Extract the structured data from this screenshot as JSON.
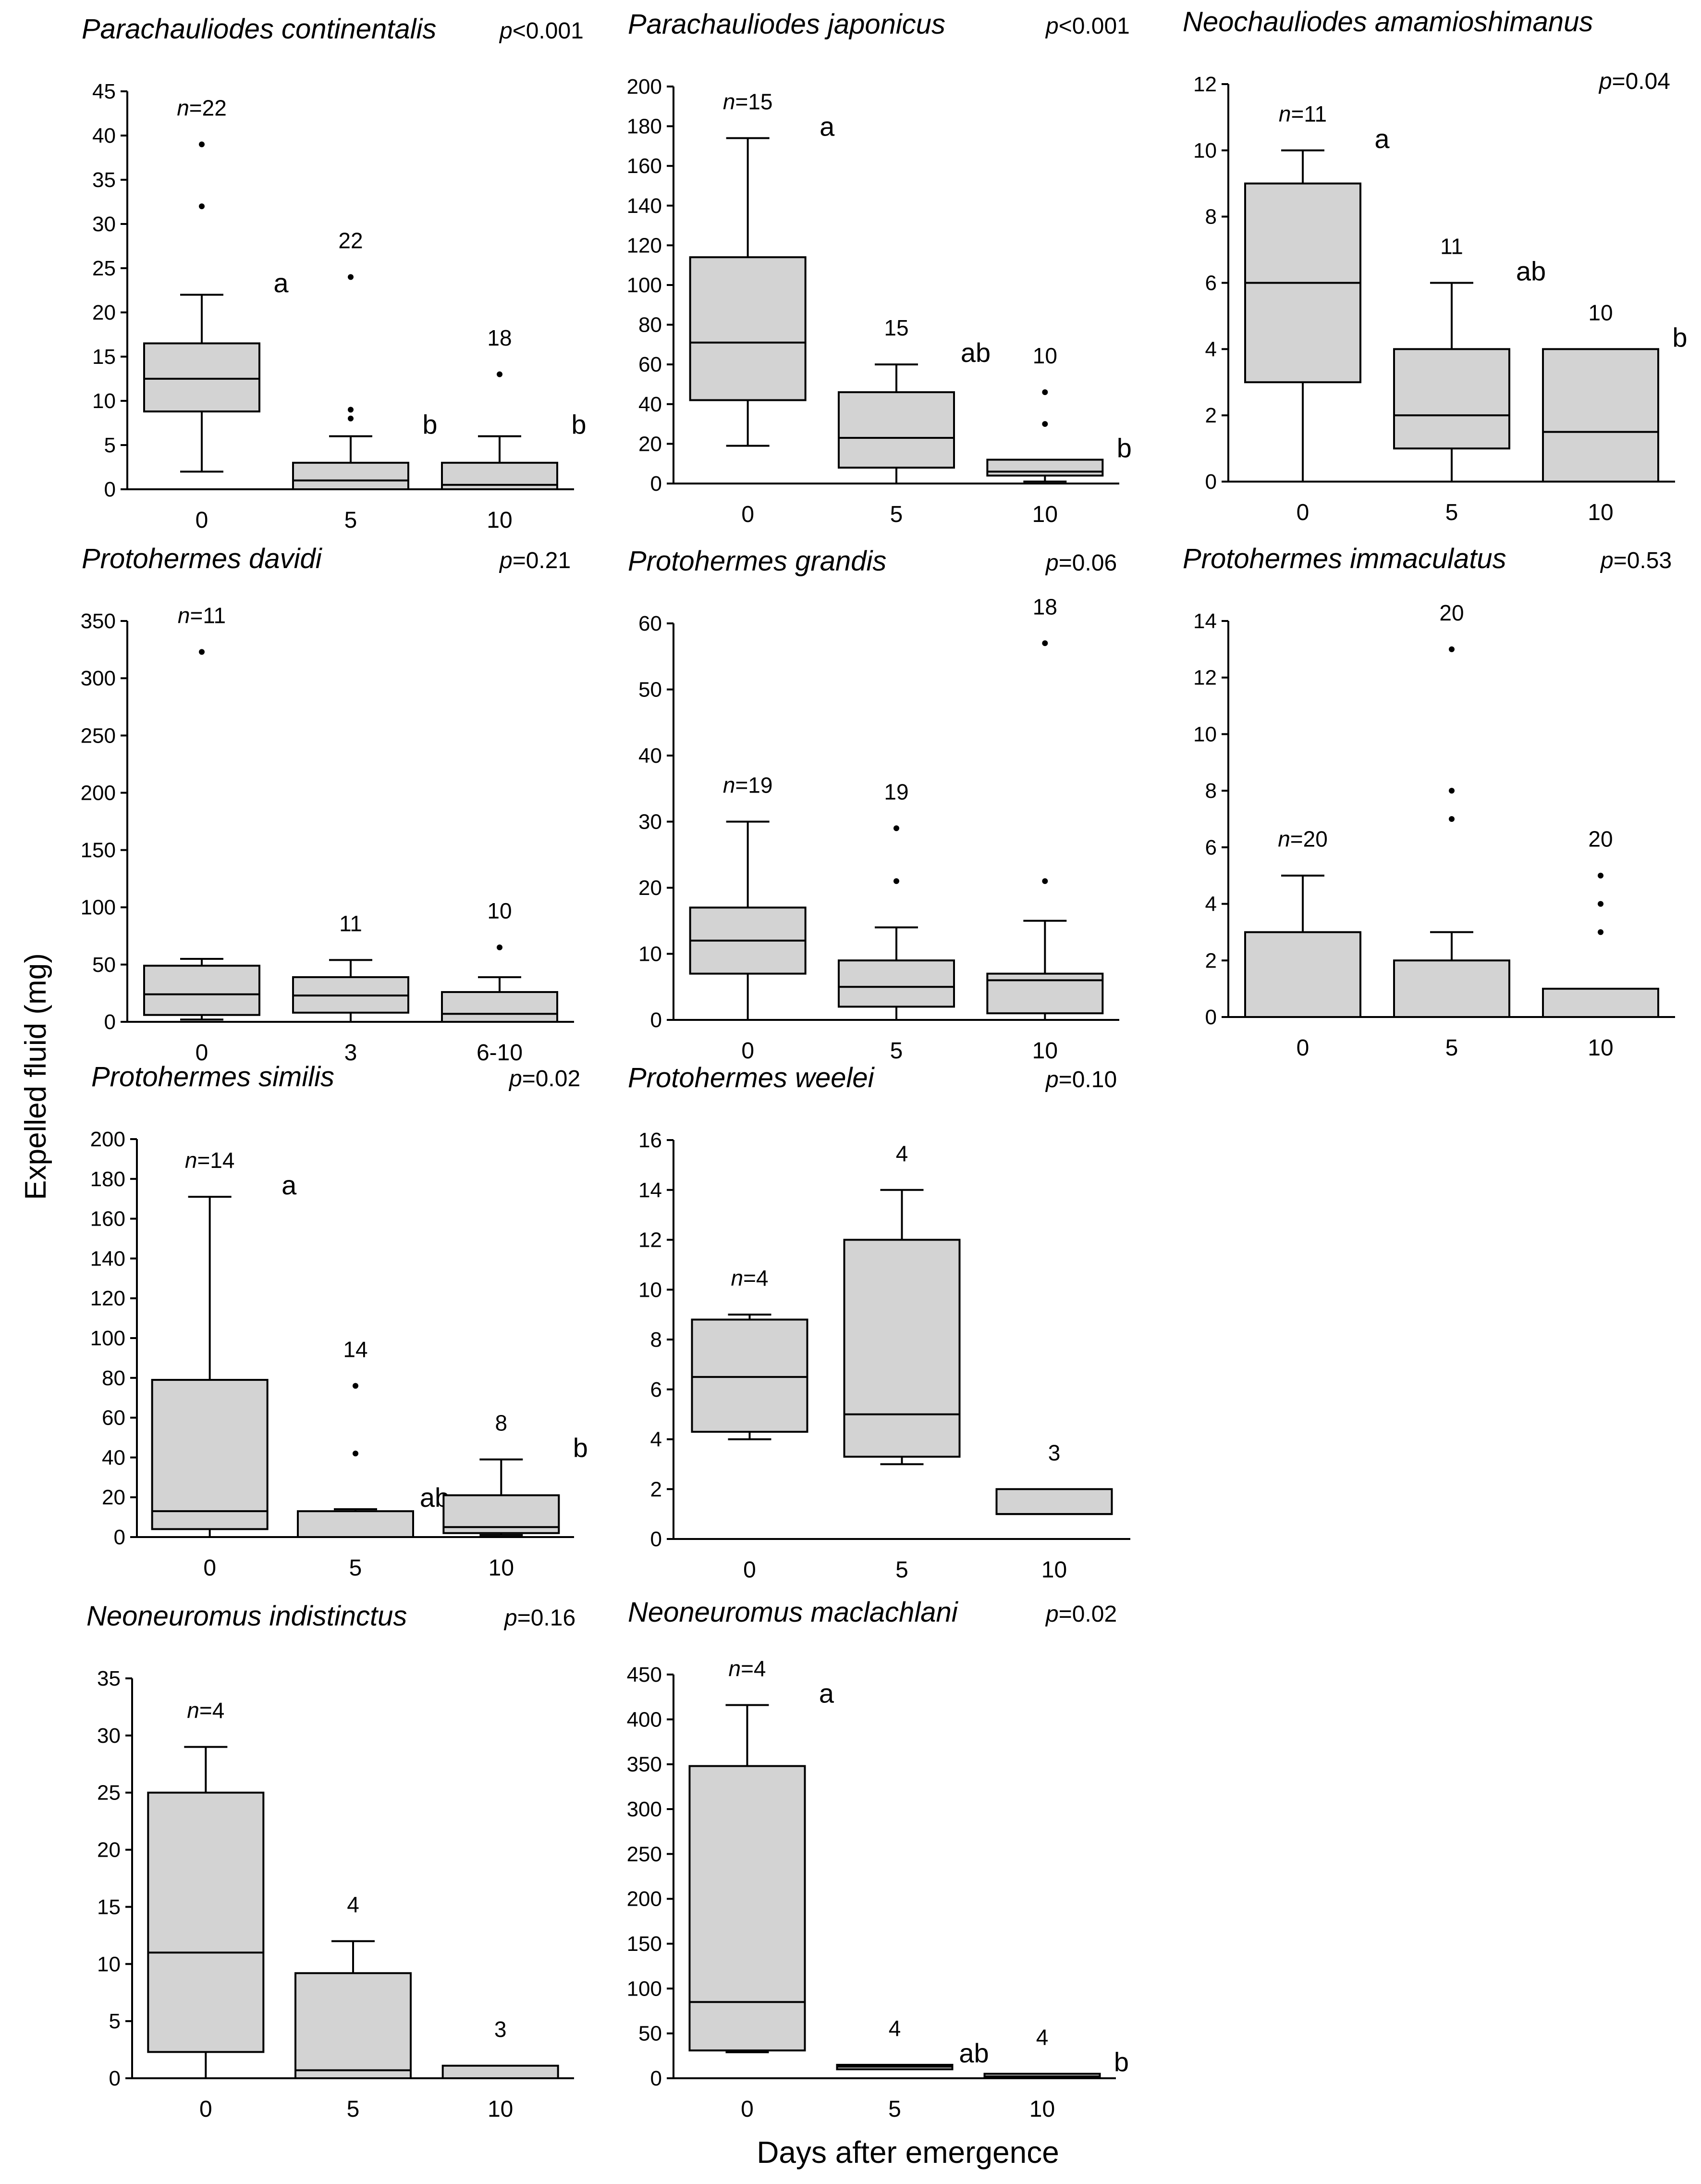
{
  "figure": {
    "ylabel": "Expelled fluid (mg)",
    "xlabel": "Days after emergence"
  },
  "chart_data": [
    {
      "type": "boxplot",
      "title": "Parachauliodes continentalis",
      "p": "p<0.001",
      "ylim": [
        0,
        45
      ],
      "yticks": [
        0,
        5,
        10,
        15,
        20,
        25,
        30,
        35,
        40,
        45
      ],
      "categories": [
        "0",
        "5",
        "10"
      ],
      "boxes": [
        {
          "category": "0",
          "min": 2,
          "q1": 8.8,
          "median": 12.5,
          "q3": 16.5,
          "max": 22,
          "outliers": [
            32,
            39
          ],
          "n": "n=22",
          "letter": "a"
        },
        {
          "category": "5",
          "min": 0,
          "q1": 0,
          "median": 1,
          "q3": 3,
          "max": 6,
          "outliers": [
            8,
            9,
            24
          ],
          "n": "22",
          "letter": "b"
        },
        {
          "category": "10",
          "min": 0,
          "q1": 0,
          "median": 0.5,
          "q3": 3,
          "max": 6,
          "outliers": [
            13
          ],
          "n": "18",
          "letter": "b"
        }
      ]
    },
    {
      "type": "boxplot",
      "title": "Parachauliodes japonicus",
      "p": "p<0.001",
      "ylim": [
        0,
        200
      ],
      "yticks": [
        0,
        20,
        40,
        60,
        80,
        100,
        120,
        140,
        160,
        180,
        200
      ],
      "categories": [
        "0",
        "5",
        "10"
      ],
      "boxes": [
        {
          "category": "0",
          "min": 19,
          "q1": 42,
          "median": 71,
          "q3": 114,
          "max": 174,
          "outliers": [],
          "n": "n=15",
          "letter": "a"
        },
        {
          "category": "5",
          "min": 0,
          "q1": 8,
          "median": 23,
          "q3": 46,
          "max": 60,
          "outliers": [],
          "n": "15",
          "letter": "ab"
        },
        {
          "category": "10",
          "min": 1,
          "q1": 4,
          "median": 6,
          "q3": 12,
          "max": 12,
          "outliers": [
            30,
            46
          ],
          "n": "10",
          "letter": "b"
        }
      ]
    },
    {
      "type": "boxplot",
      "title": "Neochauliodes amamioshimanus",
      "p": "p=0.04",
      "ylim": [
        0,
        12
      ],
      "yticks": [
        0,
        2,
        4,
        6,
        8,
        10,
        12
      ],
      "categories": [
        "0",
        "5",
        "10"
      ],
      "boxes": [
        {
          "category": "0",
          "min": 0,
          "q1": 3,
          "median": 6,
          "q3": 9,
          "max": 10,
          "outliers": [],
          "n": "n=11",
          "letter": "a"
        },
        {
          "category": "5",
          "min": 0,
          "q1": 1,
          "median": 2,
          "q3": 4,
          "max": 6,
          "outliers": [],
          "n": "11",
          "letter": "ab"
        },
        {
          "category": "10",
          "min": 0,
          "q1": 0,
          "median": 1.5,
          "q3": 4,
          "max": 4,
          "outliers": [],
          "n": "10",
          "letter": "b"
        }
      ]
    },
    {
      "type": "boxplot",
      "title": "Protohermes davidi",
      "p": "p=0.21",
      "ylim": [
        0,
        350
      ],
      "yticks": [
        0,
        50,
        100,
        150,
        200,
        250,
        300,
        350
      ],
      "categories": [
        "0",
        "3",
        "6-10"
      ],
      "boxes": [
        {
          "category": "0",
          "min": 2,
          "q1": 6,
          "median": 24,
          "q3": 49,
          "max": 55,
          "outliers": [
            323
          ],
          "n": "n=11",
          "letter": ""
        },
        {
          "category": "3",
          "min": 0,
          "q1": 8,
          "median": 23,
          "q3": 39,
          "max": 54,
          "outliers": [],
          "n": "11",
          "letter": ""
        },
        {
          "category": "6-10",
          "min": 0,
          "q1": 0,
          "median": 7,
          "q3": 26,
          "max": 39,
          "outliers": [
            65
          ],
          "n": "10",
          "letter": ""
        }
      ]
    },
    {
      "type": "boxplot",
      "title": "Protohermes grandis",
      "p": "p=0.06",
      "ylim": [
        0,
        60
      ],
      "yticks": [
        0,
        10,
        20,
        30,
        40,
        50,
        60
      ],
      "categories": [
        "0",
        "5",
        "10"
      ],
      "boxes": [
        {
          "category": "0",
          "min": 0,
          "q1": 7,
          "median": 12,
          "q3": 17,
          "max": 30,
          "outliers": [],
          "n": "n=19",
          "letter": ""
        },
        {
          "category": "5",
          "min": 0,
          "q1": 2,
          "median": 5,
          "q3": 9,
          "max": 14,
          "outliers": [
            21,
            29
          ],
          "n": "19",
          "letter": ""
        },
        {
          "category": "10",
          "min": 0,
          "q1": 1,
          "median": 6,
          "q3": 7,
          "max": 15,
          "outliers": [
            21,
            57
          ],
          "n": "18",
          "letter": ""
        }
      ]
    },
    {
      "type": "boxplot",
      "title": "Protohermes immaculatus",
      "p": "p=0.53",
      "ylim": [
        0,
        14
      ],
      "yticks": [
        0,
        2,
        4,
        6,
        8,
        10,
        12,
        14
      ],
      "categories": [
        "0",
        "5",
        "10"
      ],
      "boxes": [
        {
          "category": "0",
          "min": 0,
          "q1": 0,
          "median": 0,
          "q3": 3,
          "max": 5,
          "outliers": [],
          "n": "n=20",
          "letter": ""
        },
        {
          "category": "5",
          "min": 0,
          "q1": 0,
          "median": 0,
          "q3": 2,
          "max": 3,
          "outliers": [
            7,
            8,
            13
          ],
          "n": "20",
          "letter": ""
        },
        {
          "category": "10",
          "min": 0,
          "q1": 0,
          "median": 0,
          "q3": 1,
          "max": 1,
          "outliers": [
            3,
            4,
            5
          ],
          "n": "20",
          "letter": ""
        }
      ]
    },
    {
      "type": "boxplot",
      "title": "Protohermes similis",
      "p": "p=0.02",
      "ylim": [
        0,
        200
      ],
      "yticks": [
        0,
        20,
        40,
        60,
        80,
        100,
        120,
        140,
        160,
        180,
        200
      ],
      "categories": [
        "0",
        "5",
        "10"
      ],
      "boxes": [
        {
          "category": "0",
          "min": 0,
          "q1": 4,
          "median": 13,
          "q3": 79,
          "max": 171,
          "outliers": [],
          "n": "n=14",
          "letter": "a"
        },
        {
          "category": "5",
          "min": 0,
          "q1": 0,
          "median": 0,
          "q3": 13,
          "max": 14,
          "outliers": [
            42,
            76
          ],
          "n": "14",
          "letter": "ab"
        },
        {
          "category": "10",
          "min": 1,
          "q1": 2,
          "median": 5,
          "q3": 21,
          "max": 39,
          "outliers": [],
          "n": "8",
          "letter": "b"
        }
      ]
    },
    {
      "type": "boxplot",
      "title": "Protohermes weelei",
      "p": "p=0.10",
      "ylim": [
        0,
        16
      ],
      "yticks": [
        0,
        2,
        4,
        6,
        8,
        10,
        12,
        14,
        16
      ],
      "categories": [
        "0",
        "5",
        "10"
      ],
      "boxes": [
        {
          "category": "0",
          "min": 4,
          "q1": 4.3,
          "median": 6.5,
          "q3": 8.8,
          "max": 9,
          "outliers": [],
          "n": "n=4",
          "letter": ""
        },
        {
          "category": "5",
          "min": 3,
          "q1": 3.3,
          "median": 5,
          "q3": 12,
          "max": 14,
          "outliers": [],
          "n": "4",
          "letter": ""
        },
        {
          "category": "10",
          "min": 1,
          "q1": 1,
          "median": 1,
          "q3": 2,
          "max": 2,
          "outliers": [],
          "n": "3",
          "letter": ""
        }
      ]
    },
    {
      "type": "boxplot",
      "title": "Neoneuromus indistinctus",
      "p": "p=0.16",
      "ylim": [
        0,
        35
      ],
      "yticks": [
        0,
        5,
        10,
        15,
        20,
        25,
        30,
        35
      ],
      "categories": [
        "0",
        "5",
        "10"
      ],
      "boxes": [
        {
          "category": "0",
          "min": 0,
          "q1": 2.3,
          "median": 11,
          "q3": 25,
          "max": 29,
          "outliers": [],
          "n": "n=4",
          "letter": ""
        },
        {
          "category": "5",
          "min": 0,
          "q1": 0,
          "median": 0.7,
          "q3": 9.2,
          "max": 12,
          "outliers": [],
          "n": "4",
          "letter": ""
        },
        {
          "category": "10",
          "min": 0,
          "q1": 0,
          "median": 0,
          "q3": 1.1,
          "max": 1.1,
          "outliers": [],
          "n": "3",
          "letter": ""
        }
      ]
    },
    {
      "type": "boxplot",
      "title": "Neoneuromus maclachlani",
      "p": "p=0.02",
      "ylim": [
        0,
        450
      ],
      "yticks": [
        0,
        50,
        100,
        150,
        200,
        250,
        300,
        350,
        400,
        450
      ],
      "categories": [
        "0",
        "5",
        "10"
      ],
      "boxes": [
        {
          "category": "0",
          "min": 29,
          "q1": 31,
          "median": 85,
          "q3": 348,
          "max": 416,
          "outliers": [],
          "n": "n=4",
          "letter": "a"
        },
        {
          "category": "5",
          "min": 10,
          "q1": 10,
          "median": 13,
          "q3": 15,
          "max": 15,
          "outliers": [],
          "n": "4",
          "letter": "ab"
        },
        {
          "category": "10",
          "min": 0,
          "q1": 0,
          "median": 2,
          "q3": 5,
          "max": 5,
          "outliers": [],
          "n": "4",
          "letter": "b"
        }
      ]
    }
  ]
}
